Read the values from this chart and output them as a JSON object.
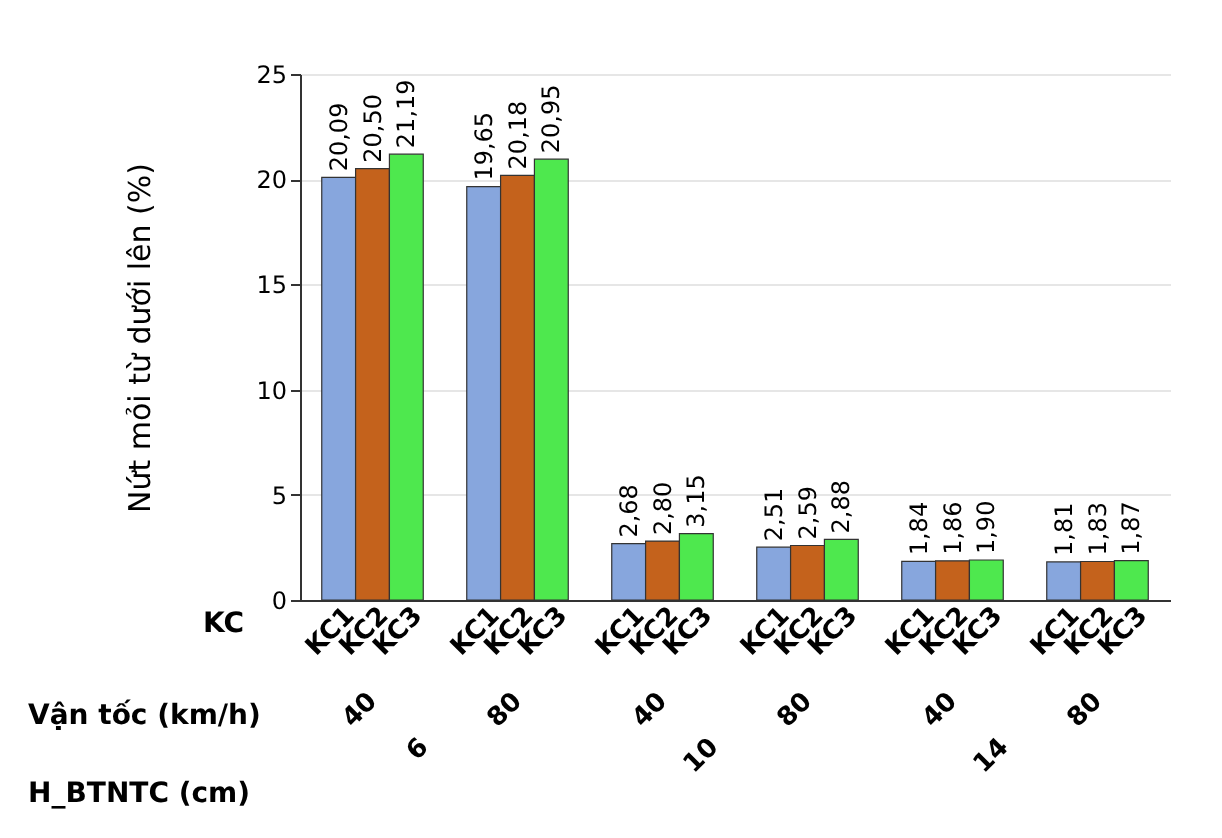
{
  "chart_data": {
    "type": "bar",
    "ylabel": "Nứt mỏi từ dưới lên (%)",
    "categories": [
      "40",
      "80",
      "40",
      "80",
      "40",
      "80"
    ],
    "series": [
      {
        "name": "KC1",
        "color": "#87a6dd",
        "values": [
          20.09,
          19.65,
          2.68,
          2.51,
          1.84,
          1.81
        ],
        "value_labels": [
          "20,09",
          "19,65",
          "2,68",
          "2,51",
          "1,84",
          "1,81"
        ]
      },
      {
        "name": "KC2",
        "color": "#c4621c",
        "values": [
          20.5,
          20.18,
          2.8,
          2.59,
          1.86,
          1.83
        ],
        "value_labels": [
          "20,50",
          "20,18",
          "2,80",
          "2,59",
          "1,86",
          "1,83"
        ]
      },
      {
        "name": "KC3",
        "color": "#4ee84e",
        "values": [
          21.19,
          20.95,
          3.15,
          2.88,
          1.9,
          1.87
        ],
        "value_labels": [
          "21,19",
          "20,95",
          "3,15",
          "2,88",
          "1,90",
          "1,87"
        ]
      }
    ],
    "ylim": [
      0,
      25
    ],
    "yticks": [
      0,
      5,
      10,
      15,
      20,
      25
    ],
    "grid": "y",
    "annotations": [
      "KC",
      "Vận tốc (km/h)",
      "H_BTNTC (cm)",
      "6",
      "10",
      "14"
    ]
  }
}
